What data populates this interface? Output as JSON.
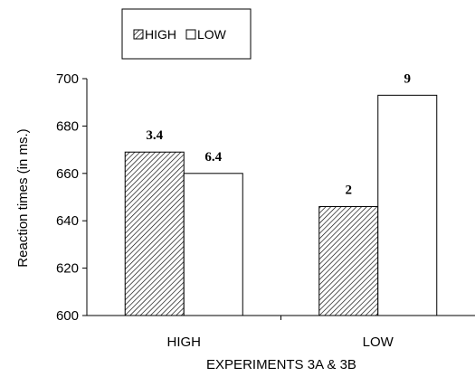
{
  "chart_data": {
    "type": "bar",
    "categories": [
      "HIGH",
      "LOW"
    ],
    "series": [
      {
        "name": "HIGH",
        "values": [
          669,
          646
        ],
        "pattern": "hatched",
        "color": "#000000"
      },
      {
        "name": "LOW",
        "values": [
          660,
          693
        ],
        "pattern": "solid",
        "color": "#ffffff"
      }
    ],
    "data_labels": [
      [
        "3.4",
        "6.4"
      ],
      [
        "2",
        "9"
      ]
    ],
    "xlabel": "EXPERIMENTS 3A & 3B",
    "ylabel": "Reaction times (in ms.)",
    "ylim": [
      600,
      700
    ],
    "yticks": [
      600,
      620,
      640,
      660,
      680,
      700
    ],
    "grid": false,
    "legend_position": "top-left"
  }
}
